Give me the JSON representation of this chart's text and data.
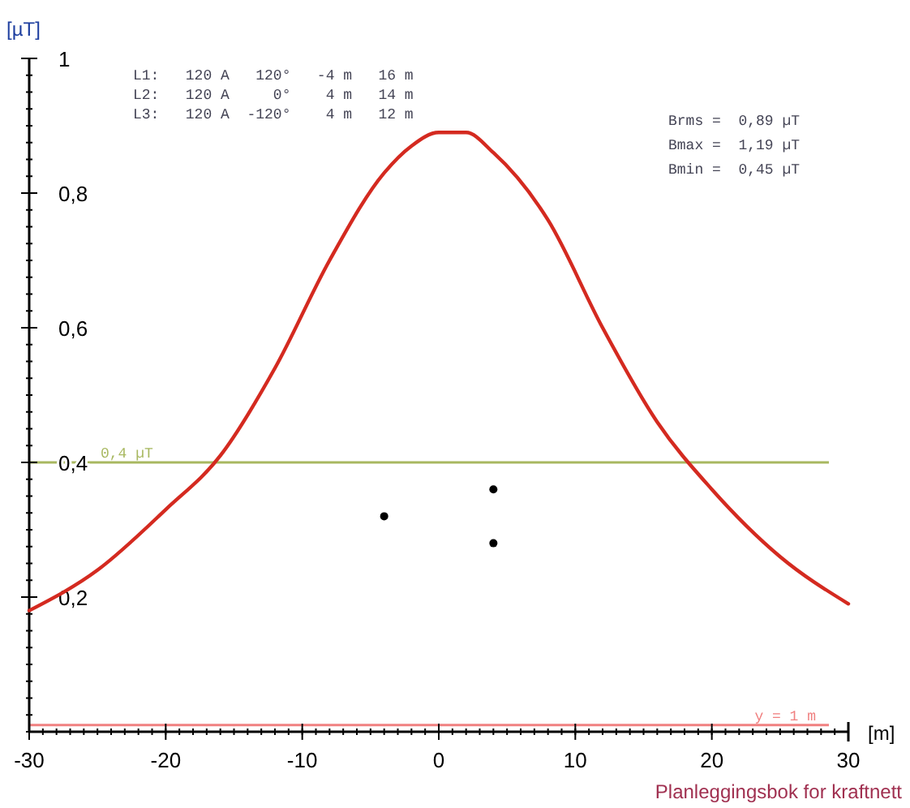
{
  "chart_data": {
    "type": "line",
    "xlabel": "[m]",
    "ylabel": "[µT]",
    "xlim": [
      -30,
      30
    ],
    "ylim": [
      0,
      1
    ],
    "xticks": [
      -30,
      -20,
      -10,
      0,
      10,
      20,
      30
    ],
    "yticks": [
      {
        "value": 0.2,
        "label": "0,2"
      },
      {
        "value": 0.4,
        "label": "0,4"
      },
      {
        "value": 0.6,
        "label": "0,6"
      },
      {
        "value": 0.8,
        "label": "0,8"
      },
      {
        "value": 1,
        "label": "1"
      }
    ],
    "grid": false,
    "series": [
      {
        "color": "#d42a20",
        "marker": "none",
        "line_style": "solid",
        "x": [
          -30,
          -25,
          -20,
          -16,
          -12,
          -8,
          -4,
          -2,
          0,
          1,
          2,
          4,
          8,
          12,
          16,
          20,
          25,
          30
        ],
        "values": [
          0.18,
          0.24,
          0.33,
          0.41,
          0.54,
          0.7,
          0.83,
          0.87,
          0.89,
          0.89,
          0.89,
          0.86,
          0.76,
          0.6,
          0.46,
          0.36,
          0.26,
          0.19
        ]
      },
      {
        "type": "scatter",
        "color": "#000000",
        "marker": "circle",
        "x": [
          -4,
          4,
          4
        ],
        "values": [
          0.32,
          0.36,
          0.28
        ]
      }
    ],
    "ref_lines": [
      {
        "axis": "y",
        "value": 0.4,
        "label": "0,4 µT",
        "color": "#a8b860"
      },
      {
        "axis": "y",
        "value": 0.01,
        "label": "y = 1 m",
        "color": "#f08080"
      }
    ],
    "annotations": [
      "L1:   120 A   120°   -4 m   16 m",
      "L2:   120 A     0°    4 m   14 m",
      "L3:   120 A  -120°    4 m   12 m",
      "Brms =  0,89 µT",
      "Bmax =  1,19 µT",
      "Bmin =  0,45 µT",
      "Planleggingsbok for kraftnett"
    ]
  }
}
